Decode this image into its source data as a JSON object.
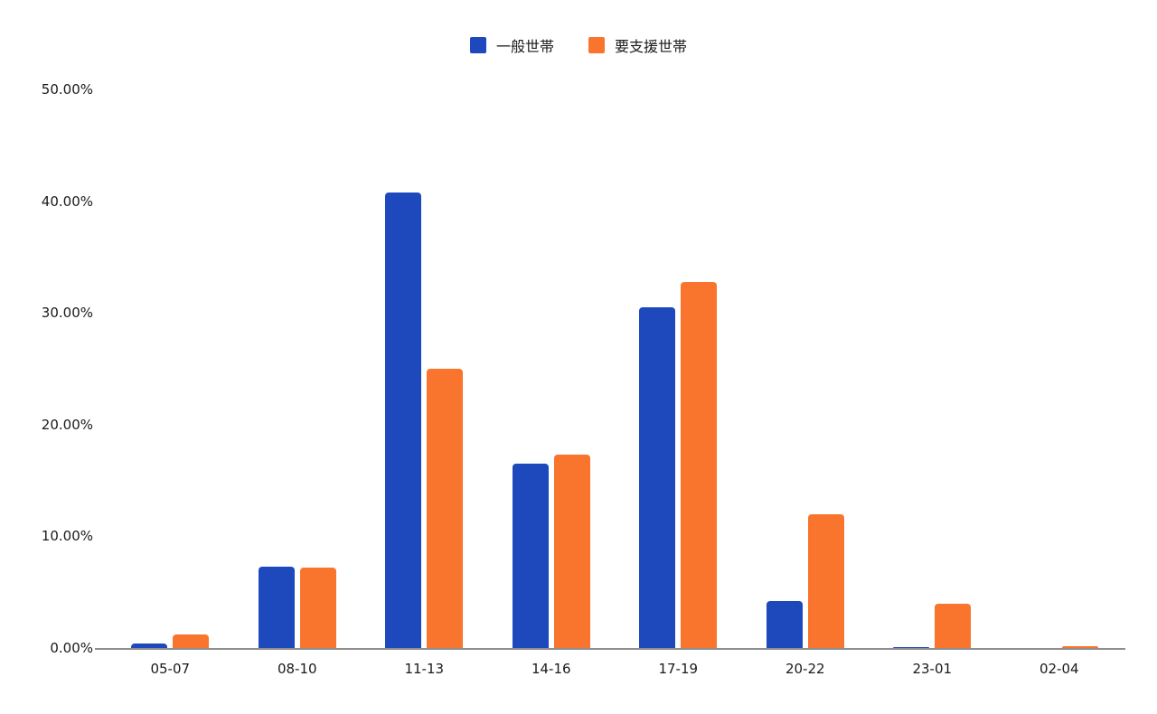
{
  "legend": {
    "items": [
      {
        "label": "一般世帯",
        "color": "#1d49bd"
      },
      {
        "label": "要支援世帯",
        "color": "#f9742d"
      }
    ]
  },
  "chart_data": {
    "type": "bar",
    "title": "",
    "xlabel": "",
    "ylabel": "",
    "categories": [
      "05-07",
      "08-10",
      "11-13",
      "14-16",
      "17-19",
      "20-22",
      "23-01",
      "02-04"
    ],
    "series": [
      {
        "name": "一般世帯",
        "color": "#1d49bd",
        "values": [
          0.4,
          7.3,
          40.8,
          16.5,
          30.5,
          4.2,
          0.1,
          0.0
        ]
      },
      {
        "name": "要支援世帯",
        "color": "#f9742d",
        "values": [
          1.2,
          7.2,
          25.0,
          17.3,
          32.8,
          12.0,
          4.0,
          0.15
        ]
      }
    ],
    "ylim": [
      0,
      50
    ],
    "yticks": [
      "0.00%",
      "10.00%",
      "20.00%",
      "30.00%",
      "40.00%",
      "50.00%"
    ],
    "ytick_values": [
      0,
      10,
      20,
      30,
      40,
      50
    ],
    "grid": "off",
    "legend_position": "top"
  }
}
